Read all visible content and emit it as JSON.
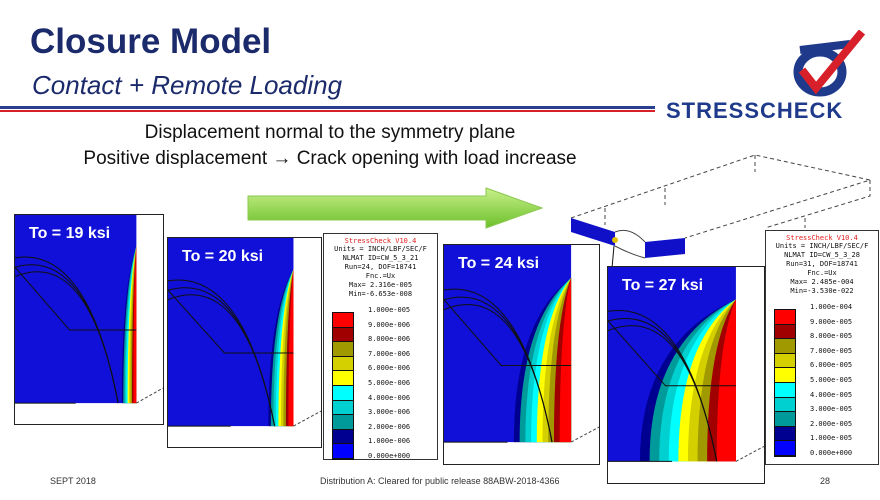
{
  "header": {
    "title": "Closure Model",
    "subtitle": "Contact + Remote Loading"
  },
  "logo": {
    "text": "STRESSCHECK",
    "colors": {
      "navy": "#1f3a8a",
      "red": "#d8202a"
    }
  },
  "body": {
    "line1": "Displacement normal to the symmetry plane",
    "line2": "Positive displacement  → Crack opening with load increase"
  },
  "panels": [
    {
      "label": "To = 19 ksi"
    },
    {
      "label": "To = 20 ksi"
    },
    {
      "label": "To = 24 ksi"
    },
    {
      "label": "To = 27 ksi"
    }
  ],
  "legends": [
    {
      "title": "StressCheck V10.4",
      "info": [
        "Units = INCH/LBF/SEC/F",
        "NLMAT ID=CW_5_3_21",
        "Run=24, DOF=18741",
        "Fnc.=Ux",
        "Max= 2.316e-005",
        "Min=-6.653e-008"
      ],
      "ticks": [
        "1.000e-005",
        "9.000e-006",
        "8.000e-006",
        "7.000e-006",
        "6.000e-006",
        "5.000e-006",
        "4.000e-006",
        "3.000e-006",
        "2.000e-006",
        "1.000e-006",
        "0.000e+000"
      ]
    },
    {
      "title": "StressCheck V10.4",
      "info": [
        "Units = INCH/LBF/SEC/F",
        "NLMAT ID=CW_5_3_28",
        "Run=31, DOF=18741",
        "Fnc.=Ux",
        "Max= 2.485e-004",
        "Min=-3.530e-022"
      ],
      "ticks": [
        "1.000e-004",
        "9.000e-005",
        "8.000e-005",
        "7.000e-005",
        "6.000e-005",
        "5.000e-005",
        "4.000e-005",
        "3.000e-005",
        "2.000e-005",
        "1.000e-005",
        "0.000e+000"
      ]
    }
  ],
  "legend_colors": [
    "#ff0000",
    "#a00000",
    "#a09a00",
    "#d4d000",
    "#ffff00",
    "#00ffff",
    "#00d0d0",
    "#009a9a",
    "#000090",
    "#0000ff"
  ],
  "footer": {
    "date": "SEPT 2018",
    "distribution": "Distribution A: Cleared for public release 88ABW-2018-4366",
    "page": "28"
  }
}
